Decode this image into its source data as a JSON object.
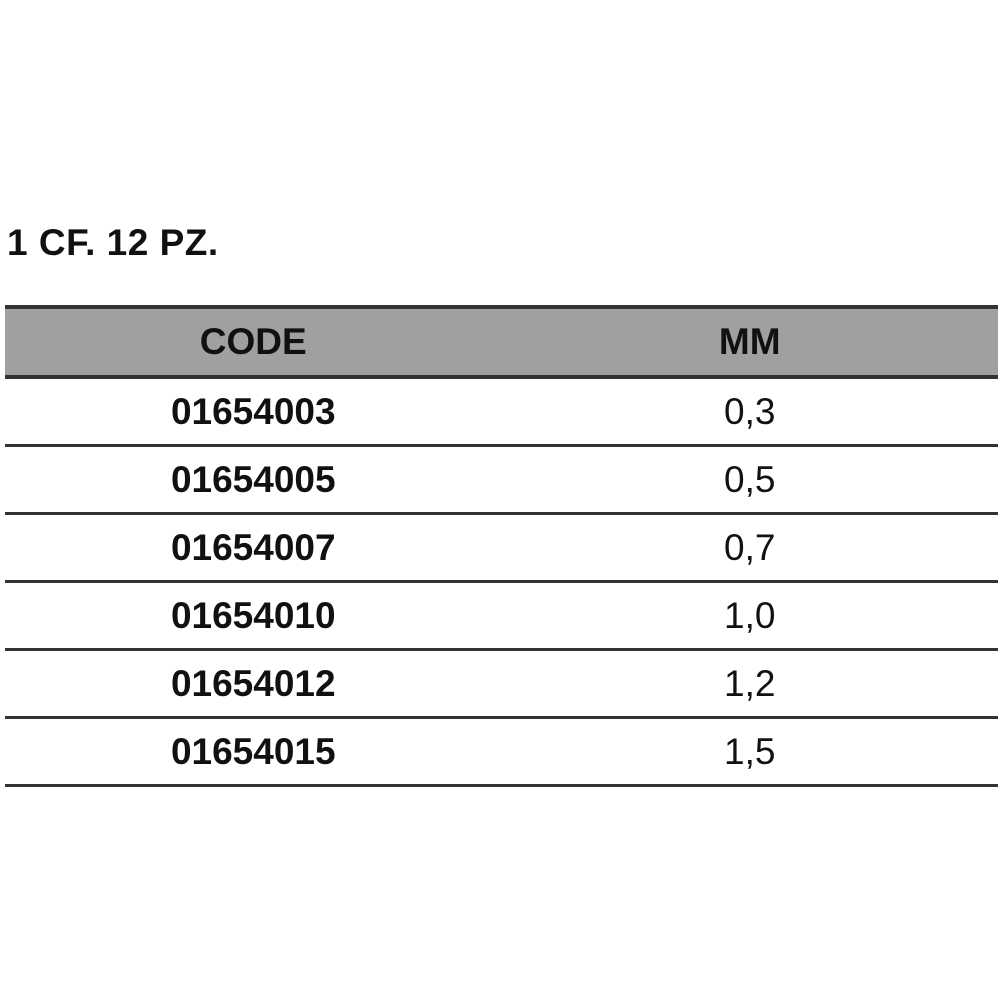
{
  "title": "1 CF. 12 PZ.",
  "table": {
    "headers": [
      "CODE",
      "MM"
    ],
    "rows": [
      [
        "01654003",
        "0,3"
      ],
      [
        "01654005",
        "0,5"
      ],
      [
        "01654007",
        "0,7"
      ],
      [
        "01654010",
        "1,0"
      ],
      [
        "01654012",
        "1,2"
      ],
      [
        "01654015",
        "1,5"
      ]
    ]
  }
}
